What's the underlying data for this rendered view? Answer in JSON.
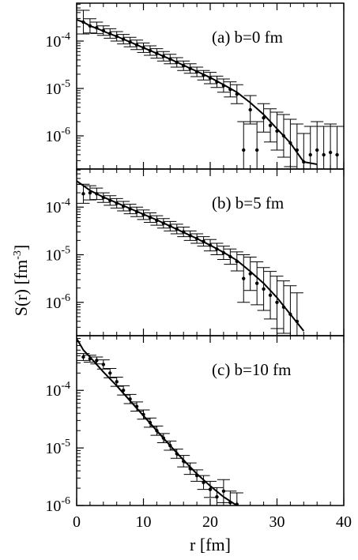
{
  "chart_data": [
    {
      "type": "scatter",
      "label": "(a) b=0 fm",
      "xlim": [
        0,
        40
      ],
      "ylim_log10": [
        -6.7,
        -3.2
      ],
      "y_scale": "log",
      "y_ticks": [
        "10-4",
        "10-5",
        "10-6"
      ],
      "x_ticks": [],
      "series": [
        {
          "style": "points-with-errorbars",
          "x": [
            1,
            2,
            3,
            4,
            5,
            6,
            7,
            8,
            9,
            10,
            11,
            12,
            13,
            14,
            15,
            16,
            17,
            18,
            19,
            20,
            21,
            22,
            23,
            24,
            25,
            26,
            27,
            28,
            29,
            30,
            31,
            32,
            33,
            34,
            35,
            36,
            37,
            38,
            39
          ],
          "y_log10": [
            -3.6,
            -3.68,
            -3.72,
            -3.78,
            -3.84,
            -3.9,
            -3.96,
            -4.02,
            -4.08,
            -4.14,
            -4.2,
            -4.26,
            -4.32,
            -4.38,
            -4.45,
            -4.52,
            -4.58,
            -4.65,
            -4.72,
            -4.78,
            -4.86,
            -4.94,
            -5.02,
            -5.12,
            -6.3,
            -5.45,
            -6.3,
            -5.62,
            -5.78,
            -5.9,
            -6.0,
            -6.15,
            -6.3,
            -6.55,
            -6.4,
            -6.3,
            -6.4,
            -6.35,
            -6.4
          ],
          "err_log10": [
            0.25,
            0.15,
            0.12,
            0.1,
            0.1,
            0.1,
            0.1,
            0.1,
            0.1,
            0.1,
            0.1,
            0.1,
            0.1,
            0.1,
            0.1,
            0.1,
            0.1,
            0.1,
            0.1,
            0.12,
            0.12,
            0.14,
            0.16,
            0.2,
            0.6,
            0.3,
            0.6,
            0.3,
            0.35,
            0.4,
            0.45,
            0.5,
            0.55,
            0.6,
            0.6,
            0.6,
            0.6,
            0.6,
            0.6
          ]
        },
        {
          "style": "line",
          "x": [
            0,
            1,
            2,
            3,
            4,
            5,
            6,
            8,
            10,
            12,
            14,
            16,
            18,
            20,
            22,
            24,
            26,
            28,
            30,
            32,
            34,
            36
          ],
          "y_log10": [
            -3.55,
            -3.6,
            -3.68,
            -3.73,
            -3.79,
            -3.85,
            -3.9,
            -4.02,
            -4.14,
            -4.26,
            -4.38,
            -4.51,
            -4.64,
            -4.77,
            -4.92,
            -5.08,
            -5.3,
            -5.55,
            -5.85,
            -6.15,
            -6.55,
            -6.6
          ]
        }
      ]
    },
    {
      "type": "scatter",
      "label": "(b) b=5 fm",
      "xlim": [
        0,
        40
      ],
      "ylim_log10": [
        -6.7,
        -3.2
      ],
      "y_scale": "log",
      "y_ticks": [
        "10-4",
        "10-5",
        "10-6"
      ],
      "x_ticks": [],
      "series": [
        {
          "style": "points-with-errorbars",
          "x": [
            1,
            2,
            3,
            4,
            5,
            6,
            7,
            8,
            9,
            10,
            11,
            12,
            13,
            14,
            15,
            16,
            17,
            18,
            19,
            20,
            21,
            22,
            23,
            24,
            25,
            26,
            27,
            28,
            29,
            30,
            31,
            32,
            33
          ],
          "y_log10": [
            -3.72,
            -3.7,
            -3.72,
            -3.8,
            -3.86,
            -3.92,
            -3.98,
            -4.04,
            -4.1,
            -4.16,
            -4.22,
            -4.28,
            -4.34,
            -4.4,
            -4.46,
            -4.52,
            -4.6,
            -4.66,
            -4.72,
            -4.8,
            -4.88,
            -4.96,
            -5.04,
            -5.14,
            -5.5,
            -5.4,
            -5.6,
            -5.72,
            -5.85,
            -6.0,
            -6.1,
            -6.25,
            -6.4
          ],
          "err_log10": [
            0.2,
            0.15,
            0.12,
            0.1,
            0.1,
            0.1,
            0.1,
            0.1,
            0.1,
            0.1,
            0.1,
            0.1,
            0.1,
            0.1,
            0.1,
            0.1,
            0.1,
            0.1,
            0.1,
            0.12,
            0.12,
            0.14,
            0.16,
            0.2,
            0.5,
            0.35,
            0.45,
            0.45,
            0.5,
            0.55,
            0.55,
            0.6,
            0.6
          ]
        },
        {
          "style": "line",
          "x": [
            0,
            1,
            2,
            3,
            4,
            5,
            6,
            8,
            10,
            12,
            14,
            16,
            18,
            20,
            22,
            24,
            26,
            28,
            30,
            32,
            34
          ],
          "y_log10": [
            -3.45,
            -3.55,
            -3.65,
            -3.72,
            -3.79,
            -3.85,
            -3.91,
            -4.03,
            -4.15,
            -4.27,
            -4.4,
            -4.53,
            -4.66,
            -4.8,
            -4.95,
            -5.12,
            -5.35,
            -5.6,
            -5.9,
            -6.25,
            -6.6
          ]
        }
      ]
    },
    {
      "type": "scatter",
      "label": "(c) b=10 fm",
      "xlim": [
        0,
        40
      ],
      "ylim_log10": [
        -6.0,
        -3.05
      ],
      "y_scale": "log",
      "y_ticks": [
        "10-4",
        "10-5",
        "10-6"
      ],
      "x_ticks": [
        "0",
        "10",
        "20",
        "30",
        "40"
      ],
      "xlabel": "r [fm]",
      "series": [
        {
          "style": "points-with-errorbars",
          "x": [
            1,
            2,
            3,
            4,
            5,
            6,
            7,
            8,
            9,
            10,
            11,
            12,
            13,
            14,
            15,
            16,
            17,
            18,
            19,
            20,
            21,
            22,
            23,
            24
          ],
          "y_log10": [
            -3.42,
            -3.45,
            -3.48,
            -3.55,
            -3.7,
            -3.85,
            -4.0,
            -4.15,
            -4.28,
            -4.42,
            -4.56,
            -4.7,
            -4.83,
            -4.96,
            -5.1,
            -5.23,
            -5.36,
            -5.48,
            -5.6,
            -5.72,
            -5.85,
            -5.75,
            -5.95,
            -5.98
          ],
          "err_log10": [
            0.06,
            0.06,
            0.06,
            0.08,
            0.08,
            0.08,
            0.08,
            0.08,
            0.08,
            0.08,
            0.08,
            0.08,
            0.08,
            0.08,
            0.08,
            0.1,
            0.1,
            0.1,
            0.12,
            0.14,
            0.16,
            0.2,
            0.2,
            0.2
          ]
        },
        {
          "style": "line",
          "x": [
            0,
            0.5,
            1,
            2,
            3,
            4,
            5,
            6,
            8,
            10,
            12,
            14,
            16,
            18,
            20,
            22,
            24,
            25
          ],
          "y_log10": [
            -3.1,
            -3.2,
            -3.3,
            -3.42,
            -3.55,
            -3.68,
            -3.8,
            -3.92,
            -4.18,
            -4.44,
            -4.7,
            -4.96,
            -5.21,
            -5.45,
            -5.66,
            -5.85,
            -6.0,
            -6.05
          ]
        }
      ]
    }
  ],
  "ylabel_main": "S(r) [fm",
  "ylabel_sup": "-3",
  "ylabel_close": "]",
  "xlabel": "r [fm]"
}
